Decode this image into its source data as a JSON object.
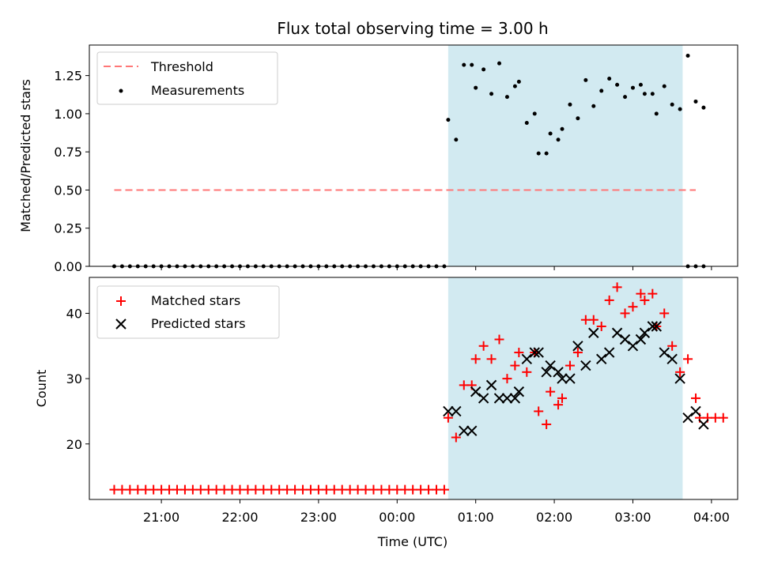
{
  "chart_data": {
    "title": "Flux total observing time = 3.00 h",
    "xlabel": "Time (UTC)",
    "x_ticks": [
      "21:00",
      "22:00",
      "23:00",
      "00:00",
      "01:00",
      "02:00",
      "03:00",
      "04:00"
    ],
    "time_range": [
      "20:05",
      "04:20"
    ],
    "observing_window": [
      "00:39",
      "03:38"
    ],
    "observing_window_color": "#add8e6",
    "panels": [
      {
        "type": "scatter",
        "ylabel": "Matched/Predicted stars",
        "ylim": [
          0.0,
          1.45
        ],
        "y_ticks": [
          0.0,
          0.25,
          0.5,
          0.75,
          1.0,
          1.25
        ],
        "y_tick_labels": [
          "0.00",
          "0.25",
          "0.50",
          "0.75",
          "1.00",
          "1.25"
        ],
        "legend_position": "upper-left",
        "threshold": {
          "name": "Threshold",
          "value": 0.5,
          "x_range": [
            "20:24",
            "03:48"
          ],
          "color": "#ff7777",
          "style": "dashed"
        },
        "measurements": {
          "name": "Measurements",
          "color": "#000000",
          "points": [
            [
              "20:24",
              0
            ],
            [
              "20:30",
              0
            ],
            [
              "20:36",
              0
            ],
            [
              "20:42",
              0
            ],
            [
              "20:48",
              0
            ],
            [
              "20:54",
              0
            ],
            [
              "21:00",
              0
            ],
            [
              "21:06",
              0
            ],
            [
              "21:12",
              0
            ],
            [
              "21:18",
              0
            ],
            [
              "21:24",
              0
            ],
            [
              "21:30",
              0
            ],
            [
              "21:36",
              0
            ],
            [
              "21:42",
              0
            ],
            [
              "21:48",
              0
            ],
            [
              "21:54",
              0
            ],
            [
              "22:00",
              0
            ],
            [
              "22:06",
              0
            ],
            [
              "22:12",
              0
            ],
            [
              "22:18",
              0
            ],
            [
              "22:24",
              0
            ],
            [
              "22:30",
              0
            ],
            [
              "22:36",
              0
            ],
            [
              "22:42",
              0
            ],
            [
              "22:48",
              0
            ],
            [
              "22:54",
              0
            ],
            [
              "23:00",
              0
            ],
            [
              "23:06",
              0
            ],
            [
              "23:12",
              0
            ],
            [
              "23:18",
              0
            ],
            [
              "23:24",
              0
            ],
            [
              "23:30",
              0
            ],
            [
              "23:36",
              0
            ],
            [
              "23:42",
              0
            ],
            [
              "23:48",
              0
            ],
            [
              "23:54",
              0
            ],
            [
              "00:00",
              0
            ],
            [
              "00:06",
              0
            ],
            [
              "00:12",
              0
            ],
            [
              "00:18",
              0
            ],
            [
              "00:24",
              0
            ],
            [
              "00:30",
              0
            ],
            [
              "00:36",
              0
            ],
            [
              "00:39",
              0.96
            ],
            [
              "00:45",
              0.83
            ],
            [
              "00:51",
              1.32
            ],
            [
              "00:57",
              1.32
            ],
            [
              "01:00",
              1.17
            ],
            [
              "01:06",
              1.29
            ],
            [
              "01:12",
              1.13
            ],
            [
              "01:18",
              1.33
            ],
            [
              "01:24",
              1.11
            ],
            [
              "01:30",
              1.18
            ],
            [
              "01:33",
              1.21
            ],
            [
              "01:39",
              0.94
            ],
            [
              "01:45",
              1.0
            ],
            [
              "01:48",
              0.74
            ],
            [
              "01:54",
              0.74
            ],
            [
              "01:57",
              0.87
            ],
            [
              "02:03",
              0.83
            ],
            [
              "02:06",
              0.9
            ],
            [
              "02:12",
              1.06
            ],
            [
              "02:18",
              0.97
            ],
            [
              "02:24",
              1.22
            ],
            [
              "02:30",
              1.05
            ],
            [
              "02:36",
              1.15
            ],
            [
              "02:42",
              1.23
            ],
            [
              "02:48",
              1.19
            ],
            [
              "02:54",
              1.11
            ],
            [
              "03:00",
              1.17
            ],
            [
              "03:06",
              1.19
            ],
            [
              "03:09",
              1.13
            ],
            [
              "03:15",
              1.13
            ],
            [
              "03:18",
              1.0
            ],
            [
              "03:24",
              1.18
            ],
            [
              "03:30",
              1.06
            ],
            [
              "03:36",
              1.03
            ],
            [
              "03:42",
              1.38
            ],
            [
              "03:48",
              1.08
            ],
            [
              "03:54",
              1.04
            ],
            [
              "03:42",
              0
            ],
            [
              "03:48",
              0
            ],
            [
              "03:54",
              0
            ]
          ]
        }
      },
      {
        "type": "scatter",
        "ylabel": "Count",
        "ylim": [
          11.5,
          45.5
        ],
        "y_ticks": [
          20,
          30,
          40
        ],
        "y_tick_labels": [
          "20",
          "30",
          "40"
        ],
        "legend_position": "upper-left",
        "series": [
          {
            "name": "Matched stars",
            "marker": "plus",
            "color": "#ff0000",
            "points": [
              [
                "20:24",
                13
              ],
              [
                "20:30",
                13
              ],
              [
                "20:36",
                13
              ],
              [
                "20:42",
                13
              ],
              [
                "20:48",
                13
              ],
              [
                "20:54",
                13
              ],
              [
                "21:00",
                13
              ],
              [
                "21:06",
                13
              ],
              [
                "21:12",
                13
              ],
              [
                "21:18",
                13
              ],
              [
                "21:24",
                13
              ],
              [
                "21:30",
                13
              ],
              [
                "21:36",
                13
              ],
              [
                "21:42",
                13
              ],
              [
                "21:48",
                13
              ],
              [
                "21:54",
                13
              ],
              [
                "22:00",
                13
              ],
              [
                "22:06",
                13
              ],
              [
                "22:12",
                13
              ],
              [
                "22:18",
                13
              ],
              [
                "22:24",
                13
              ],
              [
                "22:30",
                13
              ],
              [
                "22:36",
                13
              ],
              [
                "22:42",
                13
              ],
              [
                "22:48",
                13
              ],
              [
                "22:54",
                13
              ],
              [
                "23:00",
                13
              ],
              [
                "23:06",
                13
              ],
              [
                "23:12",
                13
              ],
              [
                "23:18",
                13
              ],
              [
                "23:24",
                13
              ],
              [
                "23:30",
                13
              ],
              [
                "23:36",
                13
              ],
              [
                "23:42",
                13
              ],
              [
                "23:48",
                13
              ],
              [
                "23:54",
                13
              ],
              [
                "00:00",
                13
              ],
              [
                "00:06",
                13
              ],
              [
                "00:12",
                13
              ],
              [
                "00:18",
                13
              ],
              [
                "00:24",
                13
              ],
              [
                "00:30",
                13
              ],
              [
                "00:36",
                13
              ],
              [
                "00:39",
                24
              ],
              [
                "00:45",
                21
              ],
              [
                "00:51",
                29
              ],
              [
                "00:57",
                29
              ],
              [
                "01:00",
                33
              ],
              [
                "01:06",
                35
              ],
              [
                "01:12",
                33
              ],
              [
                "01:18",
                36
              ],
              [
                "01:24",
                30
              ],
              [
                "01:30",
                32
              ],
              [
                "01:33",
                34
              ],
              [
                "01:39",
                31
              ],
              [
                "01:45",
                34
              ],
              [
                "01:48",
                25
              ],
              [
                "01:54",
                23
              ],
              [
                "01:57",
                28
              ],
              [
                "02:03",
                26
              ],
              [
                "02:06",
                27
              ],
              [
                "02:12",
                32
              ],
              [
                "02:18",
                34
              ],
              [
                "02:24",
                39
              ],
              [
                "02:30",
                39
              ],
              [
                "02:36",
                38
              ],
              [
                "02:42",
                42
              ],
              [
                "02:48",
                44
              ],
              [
                "02:54",
                40
              ],
              [
                "03:00",
                41
              ],
              [
                "03:06",
                43
              ],
              [
                "03:09",
                42
              ],
              [
                "03:15",
                43
              ],
              [
                "03:18",
                38
              ],
              [
                "03:24",
                40
              ],
              [
                "03:30",
                35
              ],
              [
                "03:36",
                31
              ],
              [
                "03:42",
                33
              ],
              [
                "03:48",
                27
              ],
              [
                "03:51",
                24
              ],
              [
                "03:57",
                24
              ],
              [
                "04:03",
                24
              ],
              [
                "04:09",
                24
              ]
            ]
          },
          {
            "name": "Predicted stars",
            "marker": "x",
            "color": "#000000",
            "points": [
              [
                "00:39",
                25
              ],
              [
                "00:45",
                25
              ],
              [
                "00:51",
                22
              ],
              [
                "00:57",
                22
              ],
              [
                "01:00",
                28
              ],
              [
                "01:06",
                27
              ],
              [
                "01:12",
                29
              ],
              [
                "01:18",
                27
              ],
              [
                "01:24",
                27
              ],
              [
                "01:30",
                27
              ],
              [
                "01:33",
                28
              ],
              [
                "01:39",
                33
              ],
              [
                "01:45",
                34
              ],
              [
                "01:48",
                34
              ],
              [
                "01:54",
                31
              ],
              [
                "01:57",
                32
              ],
              [
                "02:03",
                31
              ],
              [
                "02:06",
                30
              ],
              [
                "02:12",
                30
              ],
              [
                "02:18",
                35
              ],
              [
                "02:24",
                32
              ],
              [
                "02:30",
                37
              ],
              [
                "02:36",
                33
              ],
              [
                "02:42",
                34
              ],
              [
                "02:48",
                37
              ],
              [
                "02:54",
                36
              ],
              [
                "03:00",
                35
              ],
              [
                "03:06",
                36
              ],
              [
                "03:09",
                37
              ],
              [
                "03:15",
                38
              ],
              [
                "03:18",
                38
              ],
              [
                "03:24",
                34
              ],
              [
                "03:30",
                33
              ],
              [
                "03:36",
                30
              ],
              [
                "03:42",
                24
              ],
              [
                "03:48",
                25
              ],
              [
                "03:54",
                23
              ]
            ]
          }
        ]
      }
    ]
  }
}
